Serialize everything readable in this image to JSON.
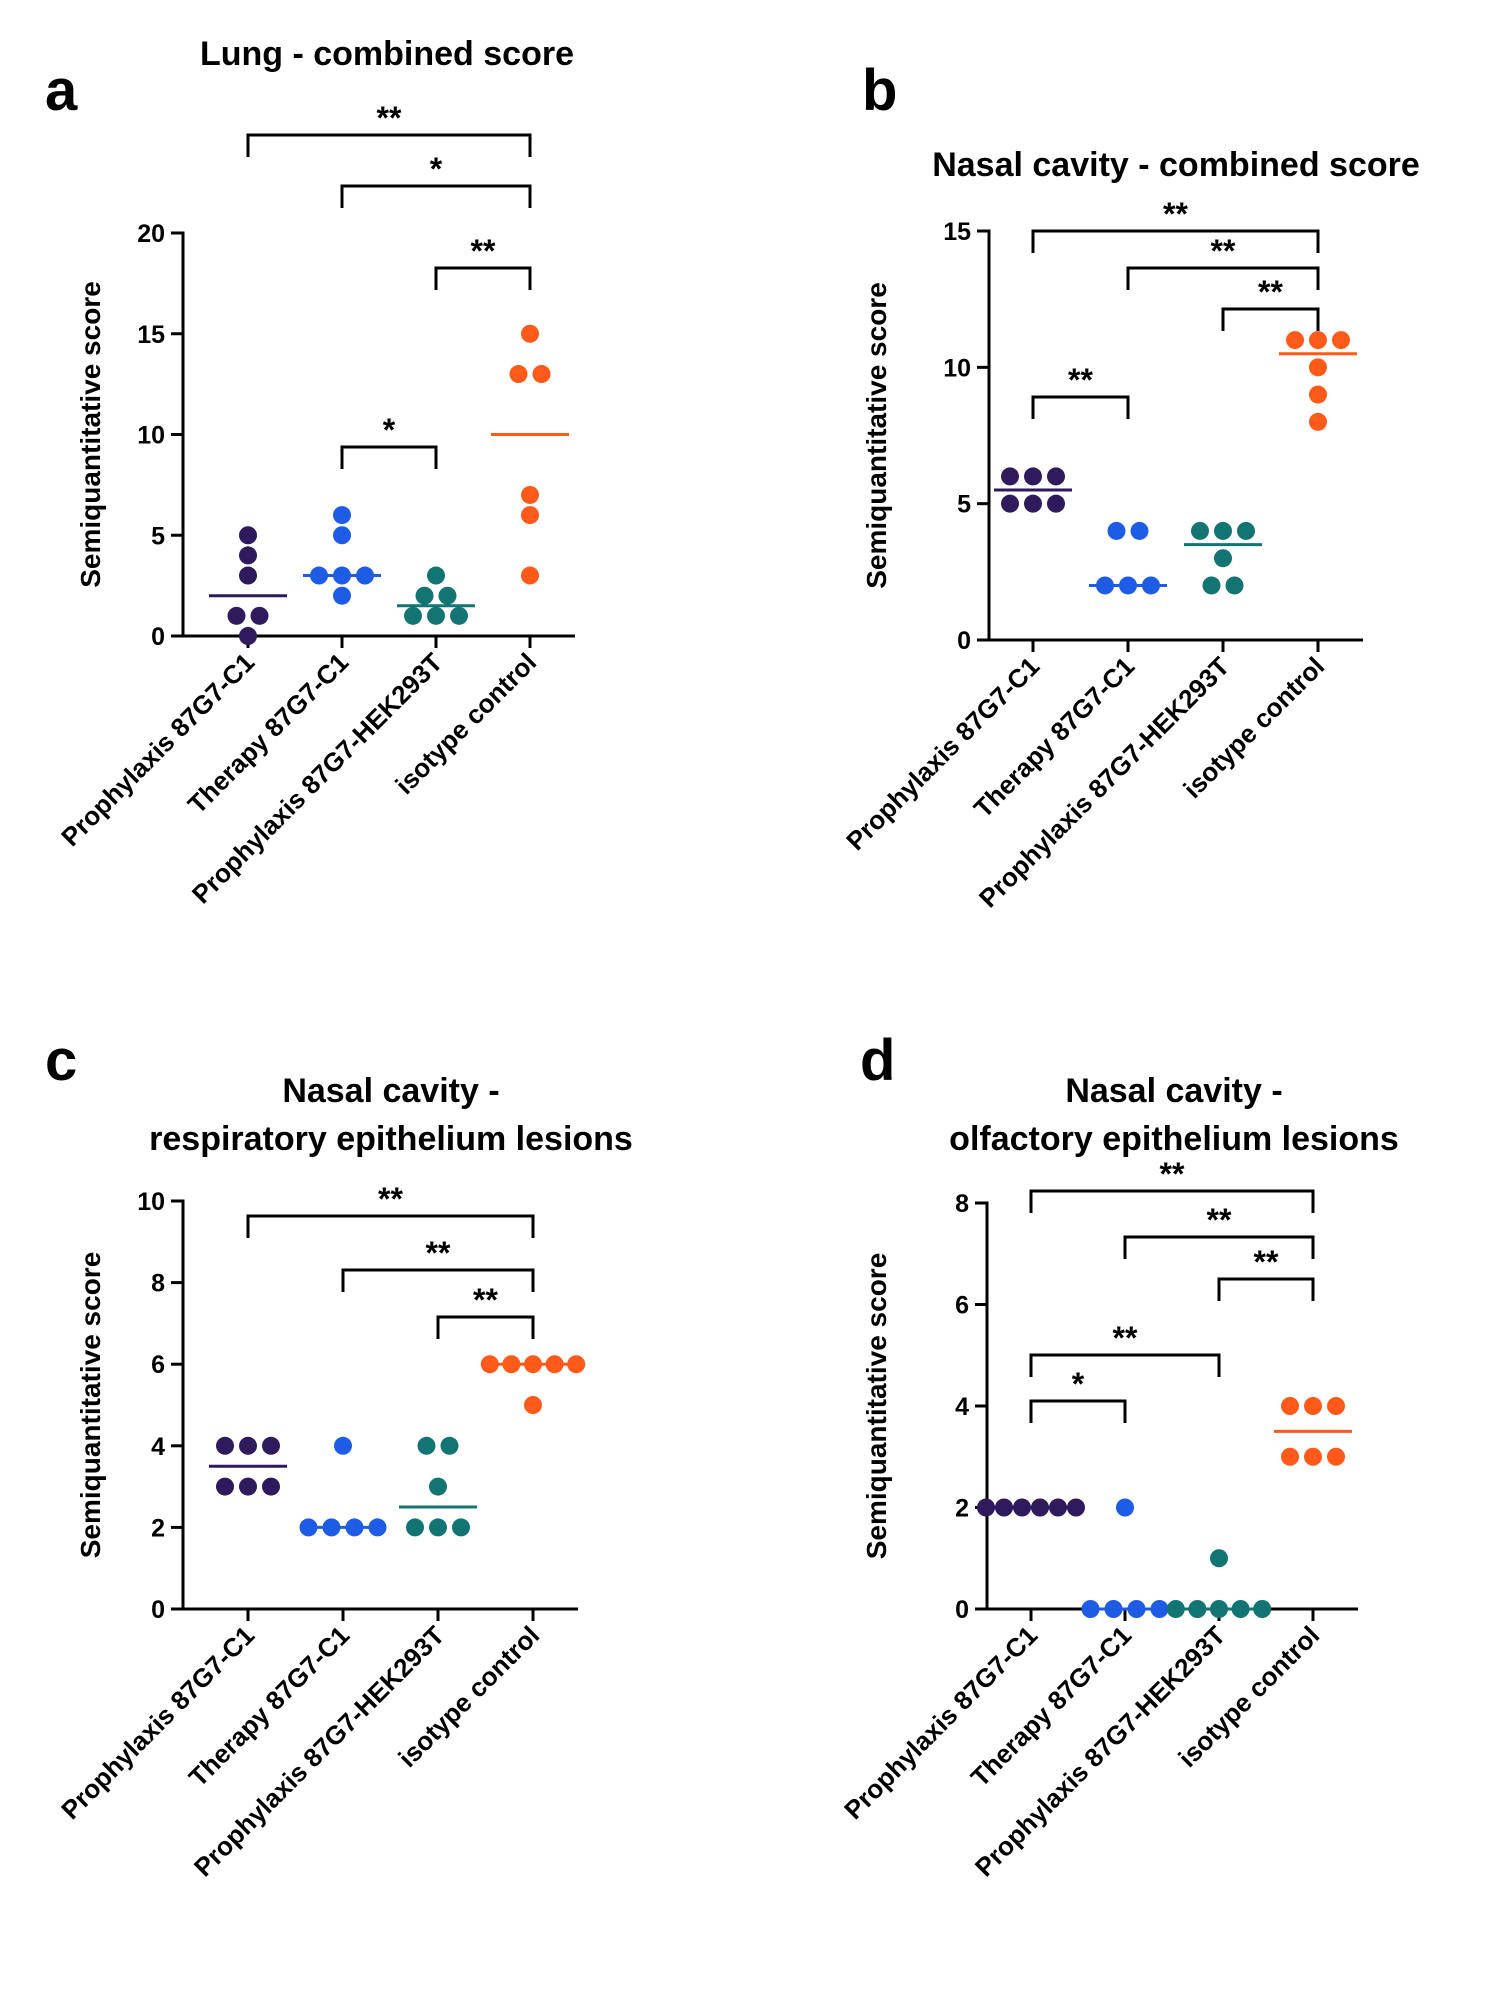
{
  "chart_data": [
    {
      "type": "strip",
      "panel": "a",
      "title": [
        "Lung - combined score"
      ],
      "ylabel": "Semiquantitative score",
      "ylim": [
        0,
        20
      ],
      "yticks": [
        0,
        5,
        10,
        15,
        20
      ],
      "series": [
        {
          "name": "Prophylaxis 87G7-C1",
          "color": "#2e1a5c",
          "values": [
            5,
            4,
            3,
            1,
            1,
            0
          ],
          "median": 2
        },
        {
          "name": "Therapy 87G7-C1",
          "color": "#1f5ce6",
          "values": [
            6,
            5,
            3,
            3,
            3,
            2
          ],
          "median": 3
        },
        {
          "name": "Prophylaxis 87G7-HEK293T",
          "color": "#137474",
          "values": [
            3,
            2,
            2,
            1,
            1,
            1
          ],
          "median": 1.5
        },
        {
          "name": "isotype control",
          "color": "#ff5a1a",
          "values": [
            15,
            13,
            13,
            7,
            6,
            3
          ],
          "median": 10
        }
      ],
      "annotations": [
        {
          "from": 0,
          "to": 3,
          "label": "**"
        },
        {
          "from": 1,
          "to": 3,
          "label": "*"
        },
        {
          "from": 2,
          "to": 3,
          "label": "**"
        },
        {
          "from": 1,
          "to": 2,
          "label": "*"
        }
      ]
    },
    {
      "type": "strip",
      "panel": "b",
      "title": [
        "Nasal cavity - combined score"
      ],
      "ylabel": "Semiquantitative score",
      "ylim": [
        0,
        15
      ],
      "yticks": [
        0,
        5,
        10,
        15
      ],
      "series": [
        {
          "name": "Prophylaxis 87G7-C1",
          "color": "#2e1a5c",
          "values": [
            6,
            6,
            6,
            5,
            5,
            5
          ],
          "median": 5.5
        },
        {
          "name": "Therapy 87G7-C1",
          "color": "#1f5ce6",
          "values": [
            4,
            4,
            2,
            2,
            2
          ],
          "median": 2
        },
        {
          "name": "Prophylaxis 87G7-HEK293T",
          "color": "#137474",
          "values": [
            4,
            4,
            4,
            3,
            2,
            2
          ],
          "median": 3.5
        },
        {
          "name": "isotype control",
          "color": "#ff5a1a",
          "values": [
            11,
            11,
            11,
            10,
            9,
            8
          ],
          "median": 10.5
        }
      ],
      "annotations": [
        {
          "from": 0,
          "to": 3,
          "label": "**"
        },
        {
          "from": 1,
          "to": 3,
          "label": "**"
        },
        {
          "from": 2,
          "to": 3,
          "label": "**"
        },
        {
          "from": 0,
          "to": 1,
          "label": "**"
        }
      ]
    },
    {
      "type": "strip",
      "panel": "c",
      "title": [
        "Nasal cavity -",
        "respiratory epithelium lesions"
      ],
      "ylabel": "Semiquantitative score",
      "ylim": [
        0,
        10
      ],
      "yticks": [
        0,
        2,
        4,
        6,
        8,
        10
      ],
      "series": [
        {
          "name": "Prophylaxis 87G7-C1",
          "color": "#2e1a5c",
          "values": [
            4,
            4,
            4,
            3,
            3,
            3
          ],
          "median": 3.5
        },
        {
          "name": "Therapy 87G7-C1",
          "color": "#1f5ce6",
          "values": [
            4,
            2,
            2,
            2,
            2
          ],
          "median": 2
        },
        {
          "name": "Prophylaxis 87G7-HEK293T",
          "color": "#137474",
          "values": [
            4,
            4,
            3,
            2,
            2,
            2
          ],
          "median": 2.5
        },
        {
          "name": "isotype control",
          "color": "#ff5a1a",
          "values": [
            6,
            6,
            6,
            6,
            6,
            5
          ],
          "median": 6
        }
      ],
      "annotations": [
        {
          "from": 0,
          "to": 3,
          "label": "**"
        },
        {
          "from": 1,
          "to": 3,
          "label": "**"
        },
        {
          "from": 2,
          "to": 3,
          "label": "**"
        }
      ]
    },
    {
      "type": "strip",
      "panel": "d",
      "title": [
        "Nasal cavity -",
        "olfactory epithelium lesions"
      ],
      "ylabel": "Semiquantitative score",
      "ylim": [
        0,
        8
      ],
      "yticks": [
        0,
        2,
        4,
        6,
        8
      ],
      "series": [
        {
          "name": "Prophylaxis 87G7-C1",
          "color": "#2e1a5c",
          "values": [
            2,
            2,
            2,
            2,
            2,
            2
          ],
          "median": 2
        },
        {
          "name": "Therapy 87G7-C1",
          "color": "#1f5ce6",
          "values": [
            2,
            0,
            0,
            0,
            0
          ],
          "median": 0
        },
        {
          "name": "Prophylaxis 87G7-HEK293T",
          "color": "#137474",
          "values": [
            1,
            0,
            0,
            0,
            0,
            0
          ],
          "median": 0
        },
        {
          "name": "isotype control",
          "color": "#ff5a1a",
          "values": [
            4,
            4,
            4,
            3,
            3,
            3
          ],
          "median": 3.5
        }
      ],
      "annotations": [
        {
          "from": 0,
          "to": 3,
          "label": "**"
        },
        {
          "from": 1,
          "to": 3,
          "label": "**"
        },
        {
          "from": 2,
          "to": 3,
          "label": "**"
        },
        {
          "from": 0,
          "to": 2,
          "label": "**"
        },
        {
          "from": 0,
          "to": 1,
          "label": "*"
        }
      ]
    }
  ]
}
